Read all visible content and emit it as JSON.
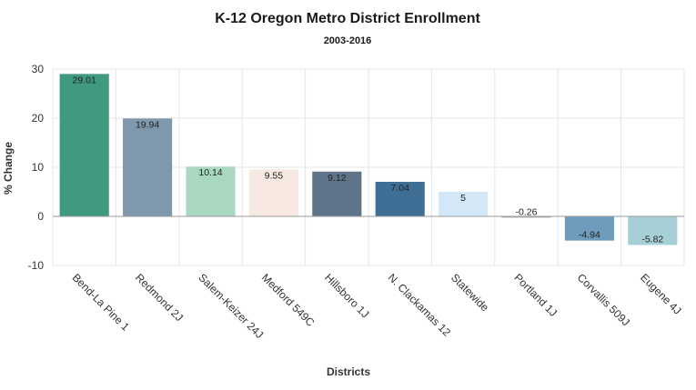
{
  "chart_data": {
    "type": "bar",
    "title": "K-12 Oregon Metro District Enrollment",
    "subtitle": "2003-2016",
    "xlabel": "Districts",
    "ylabel": "% Change",
    "ylim": [
      -10,
      30
    ],
    "yticks": [
      "30",
      "20",
      "10",
      "0",
      "-10"
    ],
    "grid": true,
    "categories": [
      "Bend-La Pine 1",
      "Redmond 2J",
      "Salem-Keizer 24J",
      "Medford 549C",
      "Hillsboro 1J",
      "N. Clackamas 12",
      "Statewide",
      "Portland 1J",
      "Corvallis 509J",
      "Eugene 4J"
    ],
    "values": [
      29.01,
      19.94,
      10.14,
      9.55,
      9.12,
      7.04,
      5,
      -0.26,
      -4.94,
      -5.82
    ],
    "value_labels": [
      "29.01",
      "19.94",
      "10.14",
      "9.55",
      "9.12",
      "7.04",
      "5",
      "-0.26",
      "-4.94",
      "-5.82"
    ],
    "colors": [
      "#3f9a7f",
      "#7f98ad",
      "#a8d8c0",
      "#f8e8e2",
      "#5e7489",
      "#3f6f95",
      "#d3e7f7",
      "#a6a6a6",
      "#6f9cbc",
      "#a7cfd6"
    ]
  }
}
